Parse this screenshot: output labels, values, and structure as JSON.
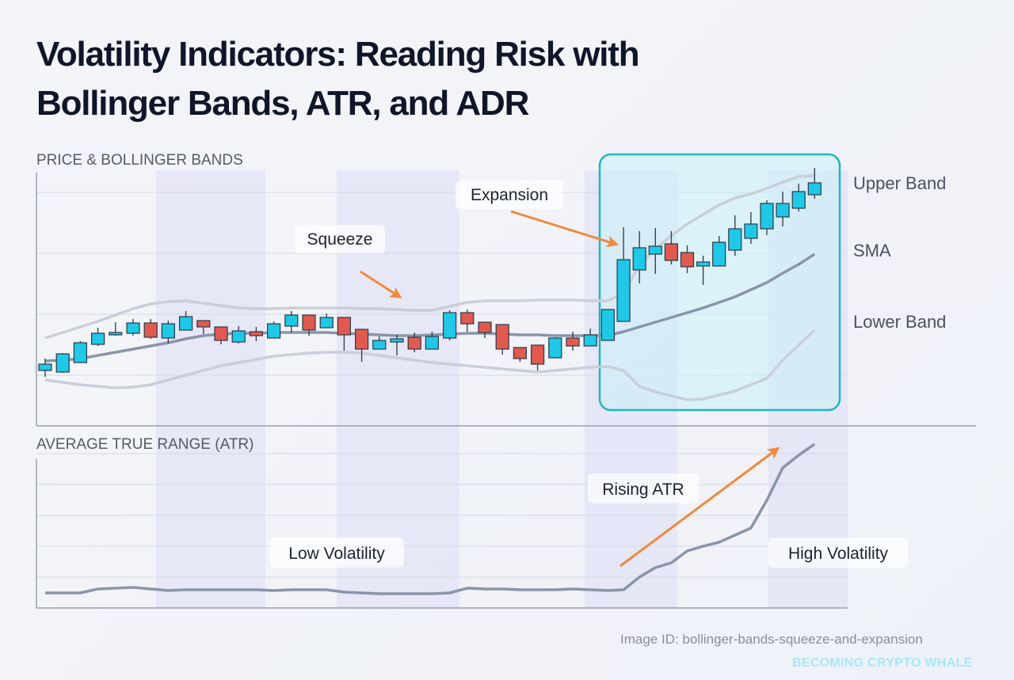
{
  "title_lines": [
    "Volatility Indicators: Reading Risk with",
    "Bollinger Bands, ATR, and ADR"
  ],
  "footer": {
    "image_id": "Image ID: bollinger-bands-squeeze-and-expansion",
    "watermark": "BECOMING CRYPTO WHALE"
  },
  "colors": {
    "up": "#1ec8e6",
    "down": "#e05a4f",
    "sma": "#8a95a8",
    "band": "#c9ced8",
    "arrow": "#f08a3c",
    "highlight": "#22b5c0",
    "shade": "#dcdcf6"
  },
  "chart_data": [
    {
      "type": "candlestick",
      "title": "PRICE & BOLLINGER BANDS",
      "ylim": [
        0,
        323
      ],
      "grid": true,
      "candles_ohlc": [
        [
          70,
          85,
          62,
          78
        ],
        [
          68,
          92,
          67,
          91
        ],
        [
          80,
          107,
          80,
          105
        ],
        [
          103,
          124,
          101,
          117
        ],
        [
          116,
          131,
          114,
          118
        ],
        [
          117,
          135,
          114,
          130
        ],
        [
          130,
          135,
          110,
          112
        ],
        [
          111,
          133,
          104,
          129
        ],
        [
          121,
          145,
          121,
          138
        ],
        [
          133,
          133,
          116,
          125
        ],
        [
          125,
          125,
          103,
          108
        ],
        [
          106,
          126,
          104,
          120
        ],
        [
          119,
          125,
          107,
          114
        ],
        [
          111,
          132,
          111,
          129
        ],
        [
          126,
          145,
          118,
          140
        ],
        [
          140,
          140,
          114,
          121
        ],
        [
          124,
          142,
          124,
          137
        ],
        [
          137,
          137,
          95,
          115
        ],
        [
          122,
          122,
          81,
          97
        ],
        [
          97,
          113,
          97,
          108
        ],
        [
          106,
          115,
          89,
          110
        ],
        [
          112,
          118,
          93,
          97
        ],
        [
          97,
          119,
          97,
          113
        ],
        [
          111,
          146,
          108,
          143
        ],
        [
          143,
          147,
          119,
          129
        ],
        [
          131,
          131,
          111,
          118
        ],
        [
          128,
          128,
          90,
          97
        ],
        [
          99,
          99,
          81,
          85
        ],
        [
          102,
          102,
          70,
          78
        ],
        [
          86,
          112,
          86,
          111
        ],
        [
          111,
          119,
          95,
          101
        ],
        [
          101,
          123,
          101,
          115
        ],
        [
          108,
          147,
          108,
          147
        ],
        [
          132,
          251,
          132,
          210
        ],
        [
          197,
          246,
          180,
          225
        ],
        [
          217,
          250,
          192,
          227
        ],
        [
          230,
          246,
          204,
          209
        ],
        [
          219,
          228,
          193,
          201
        ],
        [
          202,
          215,
          178,
          207
        ],
        [
          202,
          240,
          202,
          232
        ],
        [
          222,
          266,
          215,
          249
        ],
        [
          237,
          270,
          230,
          255
        ],
        [
          249,
          285,
          241,
          281
        ],
        [
          264,
          296,
          252,
          281
        ],
        [
          275,
          306,
          271,
          296
        ],
        [
          292,
          326,
          287,
          307
        ]
      ],
      "upper_band": [
        111,
        118,
        125,
        132,
        140,
        148,
        154,
        157,
        158,
        155,
        152,
        149,
        148,
        148,
        149,
        149,
        149,
        149,
        148,
        148,
        147,
        146,
        146,
        151,
        156,
        158,
        158,
        158,
        159,
        159,
        159,
        158,
        158,
        168,
        203,
        224,
        240,
        255,
        267,
        279,
        288,
        293,
        300,
        308,
        315,
        316
      ],
      "sma": [
        82,
        83,
        85,
        89,
        93,
        97,
        101,
        105,
        110,
        114,
        116,
        117,
        117,
        118,
        118,
        118,
        118,
        117,
        116,
        115,
        114,
        114,
        115,
        116,
        117,
        117,
        116,
        115,
        115,
        114,
        114,
        114,
        114,
        119,
        125,
        131,
        137,
        143,
        149,
        156,
        163,
        172,
        181,
        193,
        204,
        217
      ],
      "lower_band": [
        58,
        55,
        52,
        50,
        48,
        49,
        52,
        58,
        64,
        70,
        76,
        80,
        84,
        88,
        90,
        92,
        93,
        93,
        92,
        89,
        86,
        83,
        80,
        78,
        76,
        74,
        72,
        70,
        68,
        70,
        72,
        74,
        75,
        70,
        50,
        43,
        38,
        33,
        34,
        39,
        44,
        52,
        60,
        83,
        102,
        121
      ],
      "series_labels": [
        "Upper Band",
        "SMA",
        "Lower Band"
      ],
      "annotations": [
        "Squeeze",
        "Expansion"
      ],
      "highlight_range": [
        32,
        45
      ]
    },
    {
      "type": "line",
      "title": "AVERAGE TRUE RANGE (ATR)",
      "ylim": [
        0,
        195
      ],
      "grid": true,
      "values": [
        19,
        19,
        19,
        24,
        25,
        26,
        24,
        22,
        23,
        23,
        23,
        23,
        23,
        22,
        23,
        23,
        23,
        20,
        19,
        18,
        18,
        18,
        18,
        19,
        25,
        24,
        24,
        23,
        23,
        23,
        24,
        23,
        22,
        23,
        39,
        51,
        57,
        72,
        78,
        83,
        92,
        101,
        136,
        177,
        193,
        207
      ],
      "annotations": [
        "Rising ATR",
        "Low Volatility",
        "High Volatility"
      ]
    }
  ]
}
